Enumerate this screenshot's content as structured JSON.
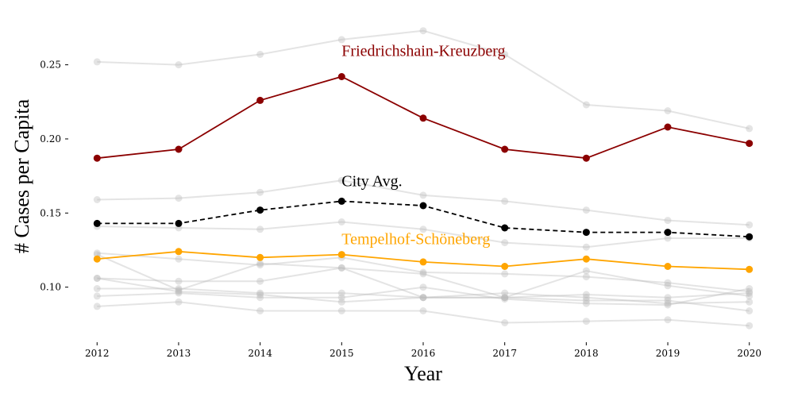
{
  "chart_data": {
    "type": "line",
    "title": "",
    "xlabel": "Year",
    "ylabel": "# Cases per Capita",
    "x": [
      2012,
      2013,
      2014,
      2015,
      2016,
      2017,
      2018,
      2019,
      2020
    ],
    "xlim": [
      2011.9,
      2020.1
    ],
    "ylim": [
      0.065,
      0.283
    ],
    "yticks": [
      0.1,
      0.15,
      0.2,
      0.25
    ],
    "ytick_labels": [
      "0.10",
      "0.15",
      "0.20",
      "0.25"
    ],
    "grid": false,
    "legend": "none",
    "colors": {
      "background_series": "#bbbbbb",
      "friedrichshain": "#8b0000",
      "city_avg": "#000000",
      "tempelhof": "#ffa500"
    },
    "background_series": [
      {
        "values": [
          0.252,
          0.25,
          0.257,
          0.267,
          0.273,
          0.257,
          0.223,
          0.219,
          0.207
        ]
      },
      {
        "values": [
          0.159,
          0.16,
          0.164,
          0.172,
          0.162,
          0.158,
          0.152,
          0.145,
          0.142
        ]
      },
      {
        "values": [
          0.141,
          0.14,
          0.139,
          0.144,
          0.139,
          0.13,
          0.127,
          0.133,
          0.133
        ]
      },
      {
        "values": [
          0.123,
          0.119,
          0.115,
          0.12,
          0.11,
          0.109,
          0.107,
          0.103,
          0.097
        ]
      },
      {
        "values": [
          0.106,
          0.104,
          0.104,
          0.113,
          0.109,
          0.093,
          0.111,
          0.101,
          0.094
        ]
      },
      {
        "values": [
          0.106,
          0.097,
          0.095,
          0.09,
          0.093,
          0.096,
          0.093,
          0.089,
          0.09
        ]
      },
      {
        "values": [
          0.099,
          0.099,
          0.096,
          0.096,
          0.093,
          0.093,
          0.095,
          0.093,
          0.096
        ]
      },
      {
        "values": [
          0.094,
          0.096,
          0.093,
          0.093,
          0.1,
          0.092,
          0.089,
          0.088,
          0.099
        ]
      },
      {
        "values": [
          0.087,
          0.09,
          0.084,
          0.084,
          0.084,
          0.076,
          0.077,
          0.078,
          0.074
        ]
      },
      {
        "values": [
          0.122,
          0.098,
          0.116,
          0.113,
          0.093,
          0.093,
          0.091,
          0.091,
          0.084
        ]
      }
    ],
    "series": [
      {
        "name": "Friedrichshain-Kreuzberg",
        "values": [
          0.187,
          0.193,
          0.226,
          0.242,
          0.214,
          0.193,
          0.187,
          0.208,
          0.197
        ]
      },
      {
        "name": "City Avg.",
        "values": [
          0.143,
          0.143,
          0.152,
          0.158,
          0.155,
          0.14,
          0.137,
          0.137,
          0.134
        ]
      },
      {
        "name": "Tempelhof-Schöneberg",
        "values": [
          0.119,
          0.124,
          0.12,
          0.122,
          0.117,
          0.114,
          0.119,
          0.114,
          0.112
        ]
      }
    ],
    "annotations": [
      {
        "text": "Friedrichshain-Kreuzberg",
        "x": 2015,
        "y": 0.256
      },
      {
        "text": "City Avg.",
        "x": 2015,
        "y": 0.168
      },
      {
        "text": "Tempelhof-Schöneberg",
        "x": 2015,
        "y": 0.129
      }
    ]
  }
}
